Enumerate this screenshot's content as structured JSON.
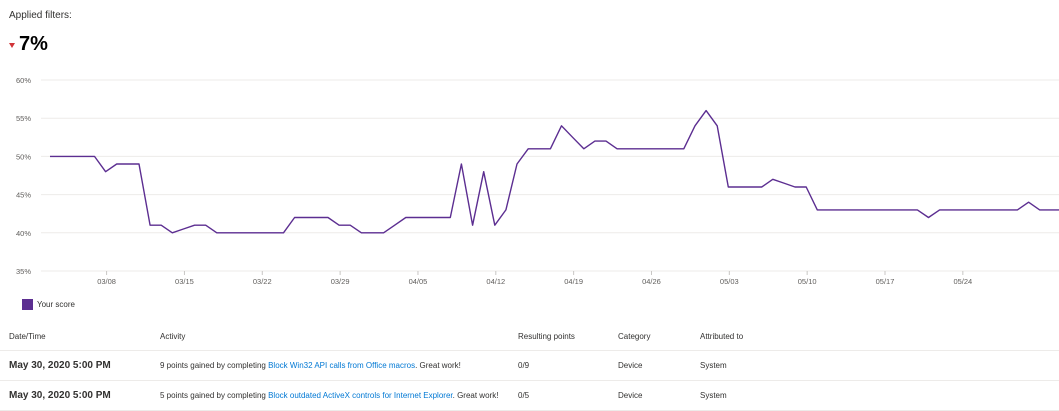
{
  "header": {
    "filters_label": "Applied filters:",
    "change_value": "7%"
  },
  "chart_data": {
    "type": "line",
    "y_ticks": [
      "60%",
      "55%",
      "50%",
      "45%",
      "40%",
      "35%"
    ],
    "ylim": [
      35,
      60
    ],
    "x_ticks": [
      "03/08",
      "03/15",
      "03/22",
      "03/29",
      "04/05",
      "04/12",
      "04/19",
      "04/26",
      "05/03",
      "05/10",
      "05/17",
      "05/24"
    ],
    "grid": true,
    "legend_position": "bottom-left",
    "color": "#5c2e91",
    "series": [
      {
        "name": "Your score",
        "points": [
          [
            "03/03",
            50
          ],
          [
            "03/04",
            50
          ],
          [
            "03/05",
            50
          ],
          [
            "03/06",
            50
          ],
          [
            "03/07",
            50
          ],
          [
            "03/08",
            48
          ],
          [
            "03/09",
            49
          ],
          [
            "03/10",
            49
          ],
          [
            "03/11",
            49
          ],
          [
            "03/12",
            41
          ],
          [
            "03/13",
            41
          ],
          [
            "03/14",
            40
          ],
          [
            "03/15",
            40.5
          ],
          [
            "03/16",
            41
          ],
          [
            "03/17",
            41
          ],
          [
            "03/18",
            40
          ],
          [
            "03/19",
            40
          ],
          [
            "03/20",
            40
          ],
          [
            "03/21",
            40
          ],
          [
            "03/22",
            40
          ],
          [
            "03/23",
            40
          ],
          [
            "03/24",
            40
          ],
          [
            "03/25",
            42
          ],
          [
            "03/26",
            42
          ],
          [
            "03/27",
            42
          ],
          [
            "03/28",
            42
          ],
          [
            "03/29",
            41
          ],
          [
            "03/30",
            41
          ],
          [
            "03/31",
            40
          ],
          [
            "04/01",
            40
          ],
          [
            "04/02",
            40
          ],
          [
            "04/03",
            41
          ],
          [
            "04/04",
            42
          ],
          [
            "04/05",
            42
          ],
          [
            "04/06",
            42
          ],
          [
            "04/07",
            42
          ],
          [
            "04/08",
            42
          ],
          [
            "04/09",
            49
          ],
          [
            "04/10",
            41
          ],
          [
            "04/11",
            48
          ],
          [
            "04/12",
            41
          ],
          [
            "04/13",
            43
          ],
          [
            "04/14",
            49
          ],
          [
            "04/15",
            51
          ],
          [
            "04/16",
            51
          ],
          [
            "04/17",
            51
          ],
          [
            "04/18",
            54
          ],
          [
            "04/19",
            52.5
          ],
          [
            "04/20",
            51
          ],
          [
            "04/21",
            52
          ],
          [
            "04/22",
            52
          ],
          [
            "04/23",
            51
          ],
          [
            "04/24",
            51
          ],
          [
            "04/25",
            51
          ],
          [
            "04/26",
            51
          ],
          [
            "04/27",
            51
          ],
          [
            "04/28",
            51
          ],
          [
            "04/29",
            51
          ],
          [
            "04/30",
            54
          ],
          [
            "05/01",
            56
          ],
          [
            "05/02",
            54
          ],
          [
            "05/03",
            46
          ],
          [
            "05/04",
            46
          ],
          [
            "05/05",
            46
          ],
          [
            "05/06",
            46
          ],
          [
            "05/07",
            47
          ],
          [
            "05/08",
            46.5
          ],
          [
            "05/09",
            46
          ],
          [
            "05/10",
            46
          ],
          [
            "05/11",
            43
          ],
          [
            "05/12",
            43
          ],
          [
            "05/13",
            43
          ],
          [
            "05/14",
            43
          ],
          [
            "05/15",
            43
          ],
          [
            "05/16",
            43
          ],
          [
            "05/17",
            43
          ],
          [
            "05/18",
            43
          ],
          [
            "05/19",
            43
          ],
          [
            "05/20",
            43
          ],
          [
            "05/21",
            42
          ],
          [
            "05/22",
            43
          ],
          [
            "05/23",
            43
          ],
          [
            "05/24",
            43
          ],
          [
            "05/25",
            43
          ],
          [
            "05/26",
            43
          ],
          [
            "05/27",
            43
          ],
          [
            "05/28",
            43
          ],
          [
            "05/29",
            43
          ],
          [
            "05/30",
            44
          ],
          [
            "05/31",
            43
          ],
          [
            "06/01",
            43
          ],
          [
            "06/02",
            43
          ],
          [
            "06/03",
            43
          ]
        ]
      }
    ]
  },
  "table": {
    "headers": [
      "Date/Time",
      "Activity",
      "Resulting points",
      "Category",
      "Attributed to"
    ],
    "rows": [
      {
        "date": "May 30, 2020 5:00 PM",
        "activity_prefix": "9 points gained by completing ",
        "activity_link": "Block Win32 API calls from Office macros",
        "activity_suffix": ". Great work!",
        "points": "0/9",
        "category": "Device",
        "attributed": "System"
      },
      {
        "date": "May 30, 2020 5:00 PM",
        "activity_prefix": "5 points gained by completing ",
        "activity_link": "Block outdated ActiveX controls for Internet Explorer",
        "activity_suffix": ". Great work!",
        "points": "0/5",
        "category": "Device",
        "attributed": "System"
      }
    ]
  }
}
